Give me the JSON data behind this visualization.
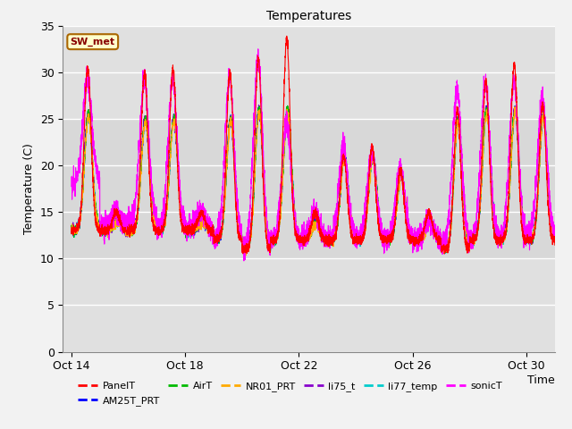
{
  "title": "Temperatures",
  "xlabel": "Time",
  "ylabel": "Temperature (C)",
  "ylim": [
    0,
    35
  ],
  "yticks": [
    0,
    5,
    10,
    15,
    20,
    25,
    30,
    35
  ],
  "shade_ymin": 10,
  "shade_ymax": 25,
  "shade_color": "#d8d8d8",
  "grid_color": "#ffffff",
  "plot_bg_color": "#e0e0e0",
  "fig_bg_color": "#f2f2f2",
  "xtick_labels": [
    "Oct 14",
    "Oct 18",
    "Oct 22",
    "Oct 26",
    "Oct 30"
  ],
  "xtick_positions": [
    0,
    4,
    8,
    12,
    16
  ],
  "sw_met_label": "SW_met",
  "sw_met_bg": "#ffffcc",
  "sw_met_border": "#aa6600",
  "sw_met_text_color": "#880000",
  "series_colors": {
    "PanelT": "#ff0000",
    "AM25T_PRT": "#0000ff",
    "AirT": "#00bb00",
    "NR01_PRT": "#ffaa00",
    "li75_t": "#8800cc",
    "li77_temp": "#00cccc",
    "sonicT": "#ff00ff"
  },
  "series_order": [
    "li77_temp",
    "li75_t",
    "AM25T_PRT",
    "AirT",
    "NR01_PRT",
    "sonicT",
    "PanelT"
  ],
  "legend_order": [
    "PanelT",
    "AM25T_PRT",
    "AirT",
    "NR01_PRT",
    "li75_t",
    "li77_temp",
    "sonicT"
  ],
  "num_days": 17,
  "pts_per_day": 288
}
